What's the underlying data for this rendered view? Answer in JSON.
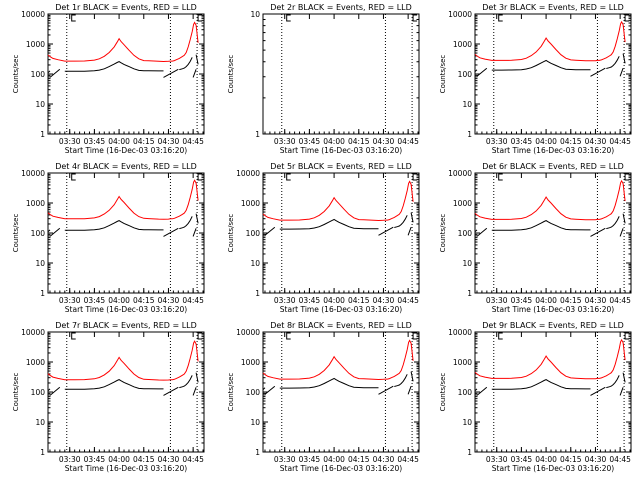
{
  "chart_data": [
    {
      "type": "line",
      "title": "Det 1r BLACK = Events, RED = LLD",
      "xlabel": "Start Time (16-Dec-03 03:16:20)",
      "ylabel": "Counts/sec",
      "y_scale": "log",
      "ylim": [
        1,
        10000
      ],
      "xlim": [
        3.28,
        4.86
      ],
      "x_tick_labels": [
        "03:30",
        "03:45",
        "04:00",
        "04:15",
        "04:30",
        "04:45"
      ],
      "y_tick_labels": [
        "1",
        "10",
        "100",
        "1000",
        "10000"
      ],
      "has_data": true,
      "events_scale": 0.55,
      "lld_scale": 1.0,
      "series": [
        {
          "name": "Events",
          "color": "#000000"
        },
        {
          "name": "LLD",
          "color": "#ff0000"
        }
      ]
    },
    {
      "type": "line",
      "title": "Det 2r BLACK = Events, RED = LLD",
      "xlabel": "Start Time (16-Dec-03 03:16:20)",
      "ylabel": "Counts/sec",
      "y_scale": "log",
      "ylim": [
        1,
        10
      ],
      "xlim": [
        3.28,
        4.86
      ],
      "x_tick_labels": [
        "03:30",
        "03:45",
        "04:00",
        "04:15",
        "04:30",
        "04:45"
      ],
      "y_tick_labels": [
        "1",
        "10"
      ],
      "has_data": false,
      "events_scale": 1.0,
      "lld_scale": 1.0,
      "series": [
        {
          "name": "Events",
          "color": "#000000"
        },
        {
          "name": "LLD",
          "color": "#ff0000"
        }
      ]
    },
    {
      "type": "line",
      "title": "Det 3r BLACK = Events, RED = LLD",
      "xlabel": "Start Time (16-Dec-03 03:16:20)",
      "ylabel": "Counts/sec",
      "y_scale": "log",
      "ylim": [
        1,
        10000
      ],
      "xlim": [
        3.28,
        4.86
      ],
      "x_tick_labels": [
        "03:30",
        "03:45",
        "04:00",
        "04:15",
        "04:30",
        "04:45"
      ],
      "y_tick_labels": [
        "1",
        "10",
        "100",
        "1000",
        "10000"
      ],
      "has_data": true,
      "events_scale": 0.6,
      "lld_scale": 1.05,
      "series": [
        {
          "name": "Events",
          "color": "#000000"
        },
        {
          "name": "LLD",
          "color": "#ff0000"
        }
      ]
    },
    {
      "type": "line",
      "title": "Det 4r BLACK = Events, RED = LLD",
      "xlabel": "Start Time (16-Dec-03 03:16:20)",
      "ylabel": "Counts/sec",
      "y_scale": "log",
      "ylim": [
        1,
        10000
      ],
      "xlim": [
        3.28,
        4.86
      ],
      "x_tick_labels": [
        "03:30",
        "03:45",
        "04:00",
        "04:15",
        "04:30",
        "04:45"
      ],
      "y_tick_labels": [
        "1",
        "10",
        "100",
        "1000",
        "10000"
      ],
      "has_data": true,
      "events_scale": 0.55,
      "lld_scale": 1.1,
      "series": [
        {
          "name": "Events",
          "color": "#000000"
        },
        {
          "name": "LLD",
          "color": "#ff0000"
        }
      ]
    },
    {
      "type": "line",
      "title": "Det 5r BLACK = Events, RED = LLD",
      "xlabel": "Start Time (16-Dec-03 03:16:20)",
      "ylabel": "Counts/sec",
      "y_scale": "log",
      "ylim": [
        1,
        10000
      ],
      "xlim": [
        3.28,
        4.86
      ],
      "x_tick_labels": [
        "03:30",
        "03:45",
        "04:00",
        "04:15",
        "04:30",
        "04:45"
      ],
      "y_tick_labels": [
        "1",
        "10",
        "100",
        "1000",
        "10000"
      ],
      "has_data": true,
      "events_scale": 0.6,
      "lld_scale": 1.0,
      "series": [
        {
          "name": "Events",
          "color": "#000000"
        },
        {
          "name": "LLD",
          "color": "#ff0000"
        }
      ]
    },
    {
      "type": "line",
      "title": "Det 6r BLACK = Events, RED = LLD",
      "xlabel": "Start Time (16-Dec-03 03:16:20)",
      "ylabel": "Counts/sec",
      "y_scale": "log",
      "ylim": [
        1,
        10000
      ],
      "xlim": [
        3.28,
        4.86
      ],
      "x_tick_labels": [
        "03:30",
        "03:45",
        "04:00",
        "04:15",
        "04:30",
        "04:45"
      ],
      "y_tick_labels": [
        "1",
        "10",
        "100",
        "1000",
        "10000"
      ],
      "has_data": true,
      "events_scale": 0.55,
      "lld_scale": 1.05,
      "series": [
        {
          "name": "Events",
          "color": "#000000"
        },
        {
          "name": "LLD",
          "color": "#ff0000"
        }
      ]
    },
    {
      "type": "line",
      "title": "Det 7r BLACK = Events, RED = LLD",
      "xlabel": "Start Time (16-Dec-03 03:16:20)",
      "ylabel": "Counts/sec",
      "y_scale": "log",
      "ylim": [
        1,
        10000
      ],
      "xlim": [
        3.28,
        4.86
      ],
      "x_tick_labels": [
        "03:30",
        "03:45",
        "04:00",
        "04:15",
        "04:30",
        "04:45"
      ],
      "y_tick_labels": [
        "1",
        "10",
        "100",
        "1000",
        "10000"
      ],
      "has_data": true,
      "events_scale": 0.55,
      "lld_scale": 0.95,
      "series": [
        {
          "name": "Events",
          "color": "#000000"
        },
        {
          "name": "LLD",
          "color": "#ff0000"
        }
      ]
    },
    {
      "type": "line",
      "title": "Det 8r BLACK = Events, RED = LLD",
      "xlabel": "Start Time (16-Dec-03 03:16:20)",
      "ylabel": "Counts/sec",
      "y_scale": "log",
      "ylim": [
        1,
        10000
      ],
      "xlim": [
        3.28,
        4.86
      ],
      "x_tick_labels": [
        "03:30",
        "03:45",
        "04:00",
        "04:15",
        "04:30",
        "04:45"
      ],
      "y_tick_labels": [
        "1",
        "10",
        "100",
        "1000",
        "10000"
      ],
      "has_data": true,
      "events_scale": 0.6,
      "lld_scale": 1.0,
      "series": [
        {
          "name": "Events",
          "color": "#000000"
        },
        {
          "name": "LLD",
          "color": "#ff0000"
        }
      ]
    },
    {
      "type": "line",
      "title": "Det 9r BLACK = Events, RED = LLD",
      "xlabel": "Start Time (16-Dec-03 03:16:20)",
      "ylabel": "Counts/sec",
      "y_scale": "log",
      "ylim": [
        1,
        10000
      ],
      "xlim": [
        3.28,
        4.86
      ],
      "x_tick_labels": [
        "03:30",
        "03:45",
        "04:00",
        "04:15",
        "04:30",
        "04:45"
      ],
      "y_tick_labels": [
        "1",
        "10",
        "100",
        "1000",
        "10000"
      ],
      "has_data": true,
      "events_scale": 0.55,
      "lld_scale": 1.05,
      "series": [
        {
          "name": "Events",
          "color": "#000000"
        },
        {
          "name": "LLD",
          "color": "#ff0000"
        }
      ]
    }
  ],
  "profile": {
    "x": [
      3.28,
      3.3,
      3.33,
      3.38,
      3.45,
      3.55,
      3.65,
      3.75,
      3.8,
      3.85,
      3.9,
      3.95,
      3.98,
      4.0,
      4.02,
      4.05,
      4.1,
      4.15,
      4.2,
      4.25,
      4.3,
      4.4,
      4.45,
      4.5,
      4.52,
      4.54,
      4.56,
      4.58,
      4.61,
      4.64,
      4.66,
      4.68,
      4.7,
      4.72,
      4.74,
      4.755,
      4.765,
      4.78,
      4.8
    ],
    "lld": [
      430,
      380,
      330,
      300,
      270,
      270,
      272,
      290,
      320,
      390,
      520,
      800,
      1150,
      1500,
      1200,
      950,
      620,
      420,
      320,
      280,
      275,
      265,
      262,
      265,
      270,
      270,
      280,
      300,
      330,
      380,
      420,
      520,
      800,
      1400,
      2600,
      4500,
      5200,
      4200,
      1100
    ],
    "events": [
      200,
      230,
      250,
      240,
      225,
      225,
      226,
      232,
      245,
      270,
      320,
      390,
      440,
      470,
      430,
      380,
      320,
      270,
      240,
      235,
      232,
      230,
      230,
      232,
      235,
      236,
      240,
      245,
      255,
      270,
      285,
      320,
      380,
      480,
      650,
      850,
      1000,
      800,
      380
    ],
    "events_gaps": [
      {
        "from": 3.3,
        "to": 3.4
      },
      {
        "from": 4.45,
        "to": 4.6
      },
      {
        "from": 4.75,
        "to": 4.78
      }
    ]
  },
  "vlines_x": [
    3.47,
    4.52,
    4.79
  ]
}
